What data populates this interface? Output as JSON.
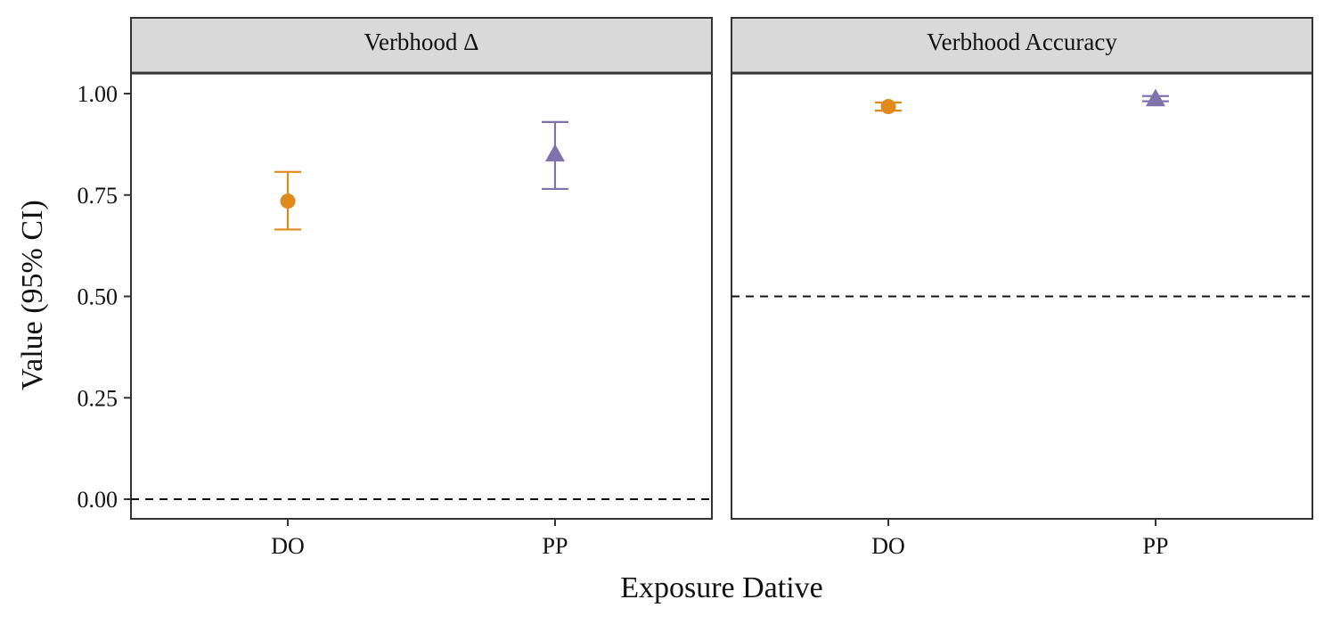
{
  "chart_data": {
    "type": "scatter",
    "xlabel": "Exposure Dative",
    "ylabel": "Value (95% CI)",
    "categories": [
      "DO",
      "PP"
    ],
    "ylim": [
      -0.05,
      1.1
    ],
    "yticks": [
      "0.00",
      "0.25",
      "0.50",
      "0.75",
      "1.00"
    ],
    "ytick_values": [
      0,
      0.25,
      0.5,
      0.75,
      1.0
    ],
    "grid": false,
    "colors": {
      "DO": "#E08A1E",
      "PP": "#8073AC"
    },
    "markers": {
      "DO": "circle",
      "PP": "triangle"
    },
    "panels": [
      {
        "title": "Verbhood Δ",
        "reference_line": 0,
        "points": [
          {
            "x": "DO",
            "y": 0.735,
            "low": 0.665,
            "high": 0.807
          },
          {
            "x": "PP",
            "y": 0.852,
            "low": 0.765,
            "high": 0.93
          }
        ]
      },
      {
        "title": "Verbhood Accuracy",
        "reference_line": 0.5,
        "points": [
          {
            "x": "DO",
            "y": 0.968,
            "low": 0.958,
            "high": 0.978
          },
          {
            "x": "PP",
            "y": 0.988,
            "low": 0.981,
            "high": 0.994
          }
        ]
      }
    ]
  }
}
